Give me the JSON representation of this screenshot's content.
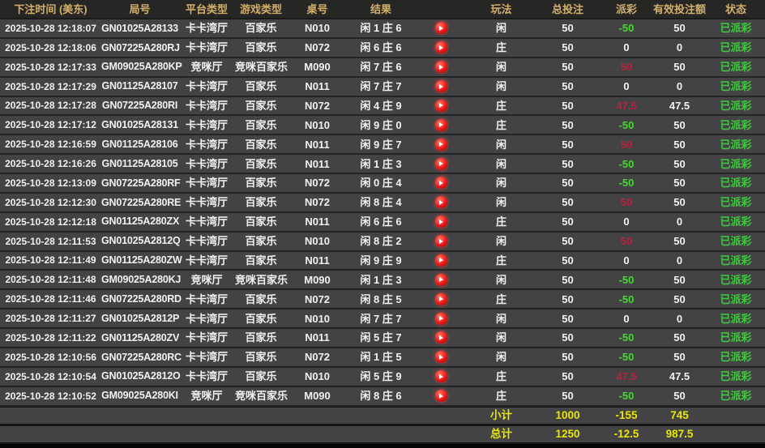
{
  "table": {
    "columns": [
      "下注时间 (美东)",
      "局号",
      "平台类型",
      "游戏类型",
      "桌号",
      "结果",
      "",
      "玩法",
      "总投注",
      "派彩",
      "有效投注额",
      "状态"
    ],
    "replay_icon": "play-circle",
    "rows": [
      {
        "time": "2025-10-28 12:18:07",
        "game_no": "GN01025A28133",
        "platform": "卡卡湾厅",
        "game_type": "百家乐",
        "table_no": "N010",
        "result": "闲 1 庄 6",
        "play": "闲",
        "total_bet": "50",
        "payout": "-50",
        "valid_bet": "50",
        "status": "已派彩"
      },
      {
        "time": "2025-10-28 12:18:06",
        "game_no": "GN07225A280RJ",
        "platform": "卡卡湾厅",
        "game_type": "百家乐",
        "table_no": "N072",
        "result": "闲 6 庄 6",
        "play": "庄",
        "total_bet": "50",
        "payout": "0",
        "valid_bet": "0",
        "status": "已派彩"
      },
      {
        "time": "2025-10-28 12:17:33",
        "game_no": "GM09025A280KP",
        "platform": "竞咪厅",
        "game_type": "竞咪百家乐",
        "table_no": "M090",
        "result": "闲 7 庄 6",
        "play": "闲",
        "total_bet": "50",
        "payout": "50",
        "valid_bet": "50",
        "status": "已派彩"
      },
      {
        "time": "2025-10-28 12:17:29",
        "game_no": "GN01125A28107",
        "platform": "卡卡湾厅",
        "game_type": "百家乐",
        "table_no": "N011",
        "result": "闲 7 庄 7",
        "play": "闲",
        "total_bet": "50",
        "payout": "0",
        "valid_bet": "0",
        "status": "已派彩"
      },
      {
        "time": "2025-10-28 12:17:28",
        "game_no": "GN07225A280RI",
        "platform": "卡卡湾厅",
        "game_type": "百家乐",
        "table_no": "N072",
        "result": "闲 4 庄 9",
        "play": "庄",
        "total_bet": "50",
        "payout": "47.5",
        "valid_bet": "47.5",
        "status": "已派彩"
      },
      {
        "time": "2025-10-28 12:17:12",
        "game_no": "GN01025A28131",
        "platform": "卡卡湾厅",
        "game_type": "百家乐",
        "table_no": "N010",
        "result": "闲 9 庄 0",
        "play": "庄",
        "total_bet": "50",
        "payout": "-50",
        "valid_bet": "50",
        "status": "已派彩"
      },
      {
        "time": "2025-10-28 12:16:59",
        "game_no": "GN01125A28106",
        "platform": "卡卡湾厅",
        "game_type": "百家乐",
        "table_no": "N011",
        "result": "闲 9 庄 7",
        "play": "闲",
        "total_bet": "50",
        "payout": "50",
        "valid_bet": "50",
        "status": "已派彩"
      },
      {
        "time": "2025-10-28 12:16:26",
        "game_no": "GN01125A28105",
        "platform": "卡卡湾厅",
        "game_type": "百家乐",
        "table_no": "N011",
        "result": "闲 1 庄 3",
        "play": "闲",
        "total_bet": "50",
        "payout": "-50",
        "valid_bet": "50",
        "status": "已派彩"
      },
      {
        "time": "2025-10-28 12:13:09",
        "game_no": "GN07225A280RF",
        "platform": "卡卡湾厅",
        "game_type": "百家乐",
        "table_no": "N072",
        "result": "闲 0 庄 4",
        "play": "闲",
        "total_bet": "50",
        "payout": "-50",
        "valid_bet": "50",
        "status": "已派彩"
      },
      {
        "time": "2025-10-28 12:12:30",
        "game_no": "GN07225A280RE",
        "platform": "卡卡湾厅",
        "game_type": "百家乐",
        "table_no": "N072",
        "result": "闲 8 庄 4",
        "play": "闲",
        "total_bet": "50",
        "payout": "50",
        "valid_bet": "50",
        "status": "已派彩"
      },
      {
        "time": "2025-10-28 12:12:18",
        "game_no": "GN01125A280ZX",
        "platform": "卡卡湾厅",
        "game_type": "百家乐",
        "table_no": "N011",
        "result": "闲 6 庄 6",
        "play": "庄",
        "total_bet": "50",
        "payout": "0",
        "valid_bet": "0",
        "status": "已派彩"
      },
      {
        "time": "2025-10-28 12:11:53",
        "game_no": "GN01025A2812Q",
        "platform": "卡卡湾厅",
        "game_type": "百家乐",
        "table_no": "N010",
        "result": "闲 8 庄 2",
        "play": "闲",
        "total_bet": "50",
        "payout": "50",
        "valid_bet": "50",
        "status": "已派彩"
      },
      {
        "time": "2025-10-28 12:11:49",
        "game_no": "GN01125A280ZW",
        "platform": "卡卡湾厅",
        "game_type": "百家乐",
        "table_no": "N011",
        "result": "闲 9 庄 9",
        "play": "庄",
        "total_bet": "50",
        "payout": "0",
        "valid_bet": "0",
        "status": "已派彩"
      },
      {
        "time": "2025-10-28 12:11:48",
        "game_no": "GM09025A280KJ",
        "platform": "竞咪厅",
        "game_type": "竞咪百家乐",
        "table_no": "M090",
        "result": "闲 1 庄 3",
        "play": "闲",
        "total_bet": "50",
        "payout": "-50",
        "valid_bet": "50",
        "status": "已派彩"
      },
      {
        "time": "2025-10-28 12:11:46",
        "game_no": "GN07225A280RD",
        "platform": "卡卡湾厅",
        "game_type": "百家乐",
        "table_no": "N072",
        "result": "闲 8 庄 5",
        "play": "庄",
        "total_bet": "50",
        "payout": "-50",
        "valid_bet": "50",
        "status": "已派彩"
      },
      {
        "time": "2025-10-28 12:11:27",
        "game_no": "GN01025A2812P",
        "platform": "卡卡湾厅",
        "game_type": "百家乐",
        "table_no": "N010",
        "result": "闲 7 庄 7",
        "play": "闲",
        "total_bet": "50",
        "payout": "0",
        "valid_bet": "0",
        "status": "已派彩"
      },
      {
        "time": "2025-10-28 12:11:22",
        "game_no": "GN01125A280ZV",
        "platform": "卡卡湾厅",
        "game_type": "百家乐",
        "table_no": "N011",
        "result": "闲 5 庄 7",
        "play": "闲",
        "total_bet": "50",
        "payout": "-50",
        "valid_bet": "50",
        "status": "已派彩"
      },
      {
        "time": "2025-10-28 12:10:56",
        "game_no": "GN07225A280RC",
        "platform": "卡卡湾厅",
        "game_type": "百家乐",
        "table_no": "N072",
        "result": "闲 1 庄 5",
        "play": "闲",
        "total_bet": "50",
        "payout": "-50",
        "valid_bet": "50",
        "status": "已派彩"
      },
      {
        "time": "2025-10-28 12:10:54",
        "game_no": "GN01025A2812O",
        "platform": "卡卡湾厅",
        "game_type": "百家乐",
        "table_no": "N010",
        "result": "闲 5 庄 9",
        "play": "庄",
        "total_bet": "50",
        "payout": "47.5",
        "valid_bet": "47.5",
        "status": "已派彩"
      },
      {
        "time": "2025-10-28 12:10:52",
        "game_no": "GM09025A280KI",
        "platform": "竞咪厅",
        "game_type": "竞咪百家乐",
        "table_no": "M090",
        "result": "闲 8 庄 6",
        "play": "庄",
        "total_bet": "50",
        "payout": "-50",
        "valid_bet": "50",
        "status": "已派彩"
      }
    ],
    "subtotal": {
      "label": "小计",
      "total_bet": "1000",
      "payout": "-155",
      "valid_bet": "745"
    },
    "total": {
      "label": "总计",
      "total_bet": "1250",
      "payout": "-12.5",
      "valid_bet": "987.5"
    }
  },
  "colors": {
    "header_text": "#d4af6a",
    "row_bg": "#434345",
    "header_bg": "#262624",
    "payout_win_red": "#b5243a",
    "payout_loss_green": "#47d830",
    "status_green": "#3ecb3e",
    "summary_yellow": "#e9e606",
    "replay_icon_red": "#ef1717"
  }
}
